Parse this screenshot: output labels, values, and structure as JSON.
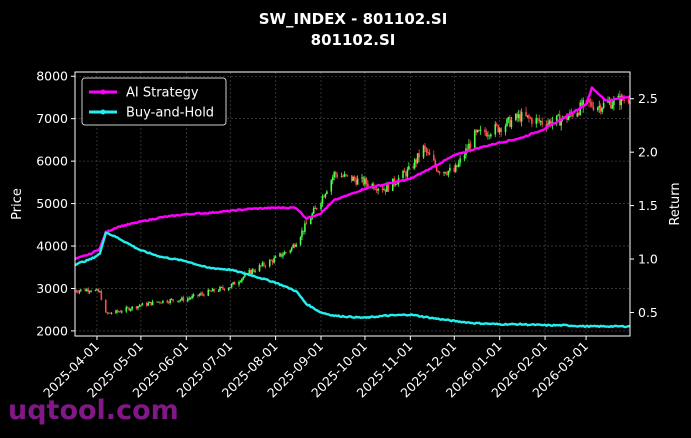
{
  "chart_data": {
    "type": "line",
    "title": "SW_INDEX - 801102.SI",
    "subtitle": "801102.SI",
    "ylabel_left": "Price",
    "ylabel_right": "Return",
    "ylim_left": [
      1880,
      8100
    ],
    "ylim_right": [
      0.28,
      2.75
    ],
    "yticks_left": [
      "2000",
      "3000",
      "4000",
      "5000",
      "6000",
      "7000",
      "8000"
    ],
    "yticks_right": [
      "0.5",
      "1.0",
      "1.5",
      "2.0",
      "2.5"
    ],
    "xlim": [
      "2025-03-17",
      "2026-03-31"
    ],
    "xticks": [
      "2025-04-01",
      "2025-05-01",
      "2025-06-01",
      "2025-07-01",
      "2025-08-01",
      "2025-09-01",
      "2025-10-01",
      "2025-11-01",
      "2025-12-01",
      "2026-01-01",
      "2026-02-01",
      "2026-03-01"
    ],
    "grid": true,
    "legend_position": "top-left",
    "colors": {
      "up": "#4cff4c",
      "down": "#ff4c4c",
      "strategy": "#ff00ff",
      "buyhold": "#22f0f0"
    },
    "price_anchors": {
      "dates": [
        "2025-03-17",
        "2025-03-28",
        "2025-04-03",
        "2025-04-07",
        "2025-04-15",
        "2025-04-30",
        "2025-05-15",
        "2025-06-01",
        "2025-06-15",
        "2025-07-01",
        "2025-07-15",
        "2025-08-01",
        "2025-08-12",
        "2025-08-22",
        "2025-09-01",
        "2025-09-10",
        "2025-09-20",
        "2025-10-01",
        "2025-10-15",
        "2025-11-01",
        "2025-11-10",
        "2025-11-20",
        "2025-12-01",
        "2025-12-15",
        "2026-01-01",
        "2026-01-15",
        "2026-02-01",
        "2026-02-15",
        "2026-03-01",
        "2026-03-10",
        "2026-03-20",
        "2026-03-31"
      ],
      "values": [
        2950,
        2980,
        2900,
        2400,
        2450,
        2600,
        2700,
        2750,
        2900,
        3050,
        3400,
        3700,
        3950,
        4500,
        5100,
        5700,
        5600,
        5500,
        5350,
        5800,
        6300,
        5800,
        5750,
        6600,
        6800,
        7050,
        6900,
        7000,
        7350,
        7300,
        7400,
        7500
      ]
    },
    "series": [
      {
        "name": "AI Strategy",
        "x": [
          "2025-03-17",
          "2025-03-28",
          "2025-04-03",
          "2025-04-07",
          "2025-04-15",
          "2025-05-01",
          "2025-05-15",
          "2025-06-01",
          "2025-06-15",
          "2025-07-01",
          "2025-07-15",
          "2025-08-01",
          "2025-08-15",
          "2025-08-22",
          "2025-09-01",
          "2025-09-10",
          "2025-09-20",
          "2025-10-01",
          "2025-10-15",
          "2025-11-01",
          "2025-11-15",
          "2025-12-01",
          "2025-12-15",
          "2026-01-01",
          "2026-01-15",
          "2026-02-01",
          "2026-02-15",
          "2026-03-01",
          "2026-03-05",
          "2026-03-15",
          "2026-03-31"
        ],
        "values": [
          1.0,
          1.05,
          1.1,
          1.25,
          1.3,
          1.35,
          1.39,
          1.42,
          1.43,
          1.45,
          1.47,
          1.48,
          1.48,
          1.38,
          1.43,
          1.55,
          1.6,
          1.66,
          1.7,
          1.75,
          1.85,
          1.97,
          2.03,
          2.09,
          2.13,
          2.22,
          2.33,
          2.45,
          2.6,
          2.48,
          2.52
        ]
      },
      {
        "name": "Buy-and-Hold",
        "x": [
          "2025-03-17",
          "2025-03-28",
          "2025-04-03",
          "2025-04-07",
          "2025-04-15",
          "2025-05-01",
          "2025-05-15",
          "2025-06-01",
          "2025-06-15",
          "2025-07-01",
          "2025-07-15",
          "2025-08-01",
          "2025-08-15",
          "2025-08-22",
          "2025-09-01",
          "2025-09-10",
          "2025-09-20",
          "2025-10-01",
          "2025-10-15",
          "2025-11-01",
          "2025-11-15",
          "2025-12-01",
          "2025-12-15",
          "2026-01-01",
          "2026-01-15",
          "2026-02-01",
          "2026-02-15",
          "2026-03-01",
          "2026-03-15",
          "2026-03-31"
        ],
        "values": [
          0.95,
          1.0,
          1.05,
          1.25,
          1.2,
          1.08,
          1.02,
          0.98,
          0.92,
          0.9,
          0.85,
          0.78,
          0.7,
          0.58,
          0.5,
          0.47,
          0.46,
          0.45,
          0.47,
          0.48,
          0.45,
          0.42,
          0.4,
          0.39,
          0.39,
          0.38,
          0.38,
          0.37,
          0.37,
          0.37
        ]
      }
    ]
  },
  "watermark": "uqtool.com"
}
